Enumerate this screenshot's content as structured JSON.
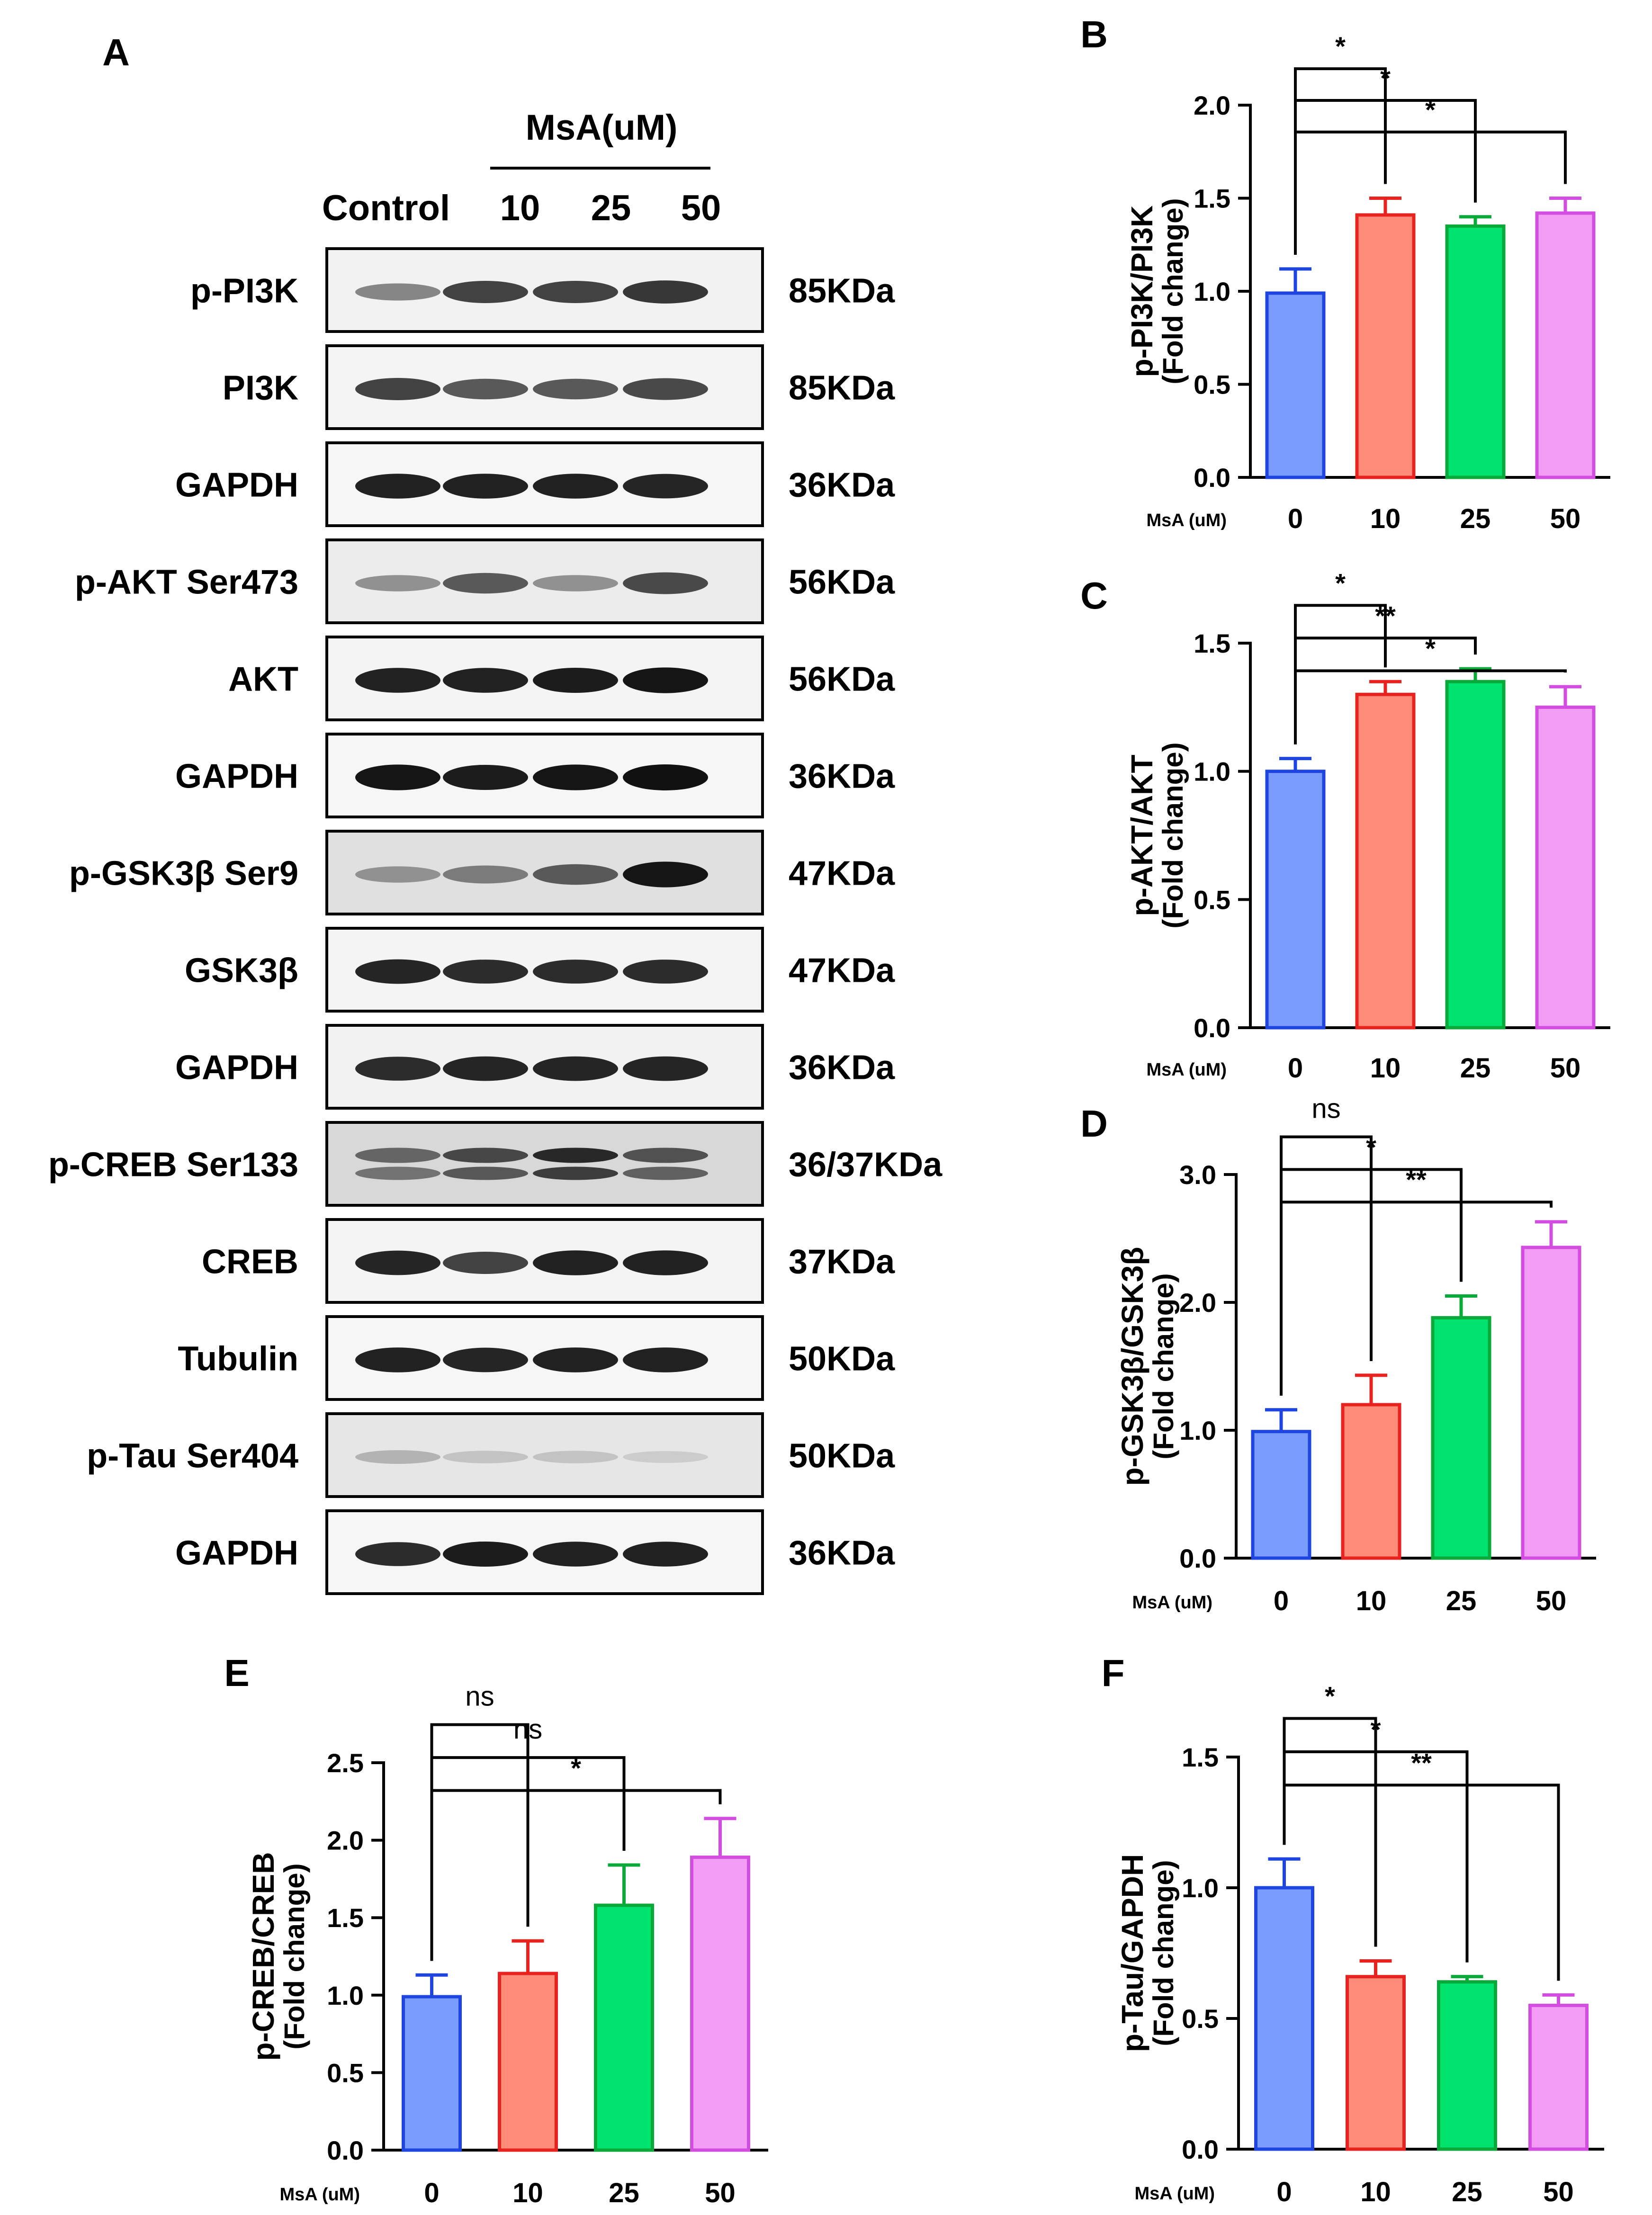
{
  "western_blot": {
    "panel_letter": "A",
    "treatment_label": "MsA(uM)",
    "lanes": [
      "Control",
      "10",
      "25",
      "50"
    ],
    "rows": [
      {
        "protein": "p-PI3K",
        "size": "85KDa",
        "intensity": [
          0.45,
          0.75,
          0.75,
          0.8
        ],
        "bg": "#f2f2f2"
      },
      {
        "protein": "PI3K",
        "size": "85KDa",
        "intensity": [
          0.75,
          0.65,
          0.65,
          0.72
        ],
        "bg": "#f4f4f4"
      },
      {
        "protein": "GAPDH",
        "size": "36KDa",
        "intensity": [
          0.9,
          0.9,
          0.9,
          0.88
        ],
        "bg": "#f6f6f6"
      },
      {
        "protein": "p-AKT Ser473",
        "size": "56KDa",
        "intensity": [
          0.4,
          0.65,
          0.4,
          0.72
        ],
        "bg": "#ececec"
      },
      {
        "protein": "AKT",
        "size": "56KDa",
        "intensity": [
          0.9,
          0.9,
          0.92,
          0.95
        ],
        "bg": "#f4f4f4"
      },
      {
        "protein": "GAPDH",
        "size": "36KDa",
        "intensity": [
          0.95,
          0.92,
          0.95,
          0.97
        ],
        "bg": "#f6f6f6"
      },
      {
        "protein": "p-GSK3β Ser9",
        "size": "47KDa",
        "intensity": [
          0.4,
          0.5,
          0.65,
          0.95
        ],
        "bg": "#e0e0e0"
      },
      {
        "protein": "GSK3β",
        "size": "47KDa",
        "intensity": [
          0.88,
          0.85,
          0.85,
          0.85
        ],
        "bg": "#f4f4f4"
      },
      {
        "protein": "GAPDH",
        "size": "36KDa",
        "intensity": [
          0.85,
          0.88,
          0.88,
          0.88
        ],
        "bg": "#f2f2f2"
      },
      {
        "protein": "p-CREB Ser133",
        "size": "36/37KDa",
        "intensity": [
          0.65,
          0.8,
          0.95,
          0.75
        ],
        "bg": "#d8d8d8",
        "double": true
      },
      {
        "protein": "CREB",
        "size": "37KDa",
        "intensity": [
          0.88,
          0.75,
          0.9,
          0.9
        ],
        "bg": "#f4f4f4"
      },
      {
        "protein": "Tubulin",
        "size": "50KDa",
        "intensity": [
          0.9,
          0.88,
          0.9,
          0.9
        ],
        "bg": "#f6f6f6"
      },
      {
        "protein": "p-Tau Ser404",
        "size": "50KDa",
        "intensity": [
          0.25,
          0.18,
          0.18,
          0.14
        ],
        "bg": "#e6e6e6"
      },
      {
        "protein": "GAPDH",
        "size": "36KDa",
        "intensity": [
          0.85,
          0.92,
          0.9,
          0.9
        ],
        "bg": "#f6f6f6"
      }
    ]
  },
  "chart_data": [
    {
      "panel": "B",
      "type": "bar",
      "categories": [
        "0",
        "10",
        "25",
        "50"
      ],
      "values": [
        0.99,
        1.41,
        1.35,
        1.42
      ],
      "errors": [
        0.13,
        0.09,
        0.05,
        0.08
      ],
      "ylabel": [
        "p-PI3K/PI3K",
        "(Fold change)"
      ],
      "xlabel": "MsA (uM)",
      "ylim": [
        0,
        2.0
      ],
      "yticks": [
        "0.0",
        "0.5",
        "1.0",
        "1.5",
        "2.0"
      ],
      "brackets": [
        {
          "from": 0,
          "to": 1,
          "label": "*"
        },
        {
          "from": 0,
          "to": 2,
          "label": "*"
        },
        {
          "from": 0,
          "to": 3,
          "label": "*"
        }
      ]
    },
    {
      "panel": "C",
      "type": "bar",
      "categories": [
        "0",
        "10",
        "25",
        "50"
      ],
      "values": [
        1.0,
        1.3,
        1.35,
        1.25
      ],
      "errors": [
        0.05,
        0.05,
        0.05,
        0.08
      ],
      "ylabel": [
        "p-AKT/AKT",
        "(Fold change)"
      ],
      "xlabel": "MsA (uM)",
      "ylim": [
        0,
        1.5
      ],
      "yticks": [
        "0.0",
        "0.5",
        "1.0",
        "1.5"
      ],
      "brackets": [
        {
          "from": 0,
          "to": 1,
          "label": "*"
        },
        {
          "from": 0,
          "to": 2,
          "label": "**"
        },
        {
          "from": 0,
          "to": 3,
          "label": "*"
        }
      ]
    },
    {
      "panel": "D",
      "type": "bar",
      "categories": [
        "0",
        "10",
        "25",
        "50"
      ],
      "values": [
        0.99,
        1.2,
        1.88,
        2.43
      ],
      "errors": [
        0.17,
        0.23,
        0.17,
        0.2
      ],
      "ylabel": [
        "p-GSK3β/GSK3β",
        "(Fold change)"
      ],
      "xlabel": "MsA (uM)",
      "ylim": [
        0,
        3.0
      ],
      "yticks": [
        "0.0",
        "1.0",
        "2.0",
        "3.0"
      ],
      "brackets": [
        {
          "from": 0,
          "to": 1,
          "label": "ns"
        },
        {
          "from": 0,
          "to": 2,
          "label": "*"
        },
        {
          "from": 0,
          "to": 3,
          "label": "**"
        }
      ]
    },
    {
      "panel": "E",
      "type": "bar",
      "categories": [
        "0",
        "10",
        "25",
        "50"
      ],
      "values": [
        0.99,
        1.14,
        1.58,
        1.89
      ],
      "errors": [
        0.14,
        0.21,
        0.26,
        0.25
      ],
      "ylabel": [
        "p-CREB/CREB",
        "(Fold change)"
      ],
      "xlabel": "MsA (uM)",
      "ylim": [
        0,
        2.5
      ],
      "yticks": [
        "0.0",
        "0.5",
        "1.0",
        "1.5",
        "2.0",
        "2.5"
      ],
      "brackets": [
        {
          "from": 0,
          "to": 1,
          "label": "ns"
        },
        {
          "from": 0,
          "to": 2,
          "label": "ns"
        },
        {
          "from": 0,
          "to": 3,
          "label": "*"
        }
      ]
    },
    {
      "panel": "F",
      "type": "bar",
      "categories": [
        "0",
        "10",
        "25",
        "50"
      ],
      "values": [
        1.0,
        0.66,
        0.64,
        0.55
      ],
      "errors": [
        0.11,
        0.06,
        0.02,
        0.04
      ],
      "ylabel": [
        "p-Tau/GAPDH",
        "(Fold change)"
      ],
      "xlabel": "MsA (uM)",
      "ylim": [
        0,
        1.5
      ],
      "yticks": [
        "0.0",
        "0.5",
        "1.0",
        "1.5"
      ],
      "brackets": [
        {
          "from": 0,
          "to": 1,
          "label": "*"
        },
        {
          "from": 0,
          "to": 2,
          "label": "*"
        },
        {
          "from": 0,
          "to": 3,
          "label": "**"
        }
      ]
    }
  ],
  "bar_colors": {
    "fill": [
      "#7b9cff",
      "#ff8c78",
      "#00e36e",
      "#f29cf5"
    ],
    "stroke": [
      "#1f45e0",
      "#e8231f",
      "#0aaa3a",
      "#d24de0"
    ]
  }
}
